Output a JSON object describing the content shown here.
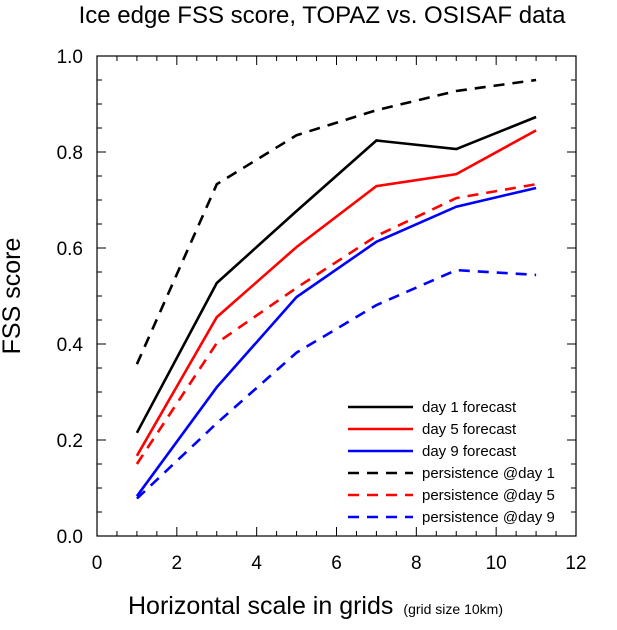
{
  "chart_data": {
    "type": "line",
    "title": "Ice edge FSS score, TOPAZ vs. OSISAF data",
    "xlabel": "Horizontal scale in grids",
    "xlabel_note": "(grid size 10km)",
    "ylabel": "FSS score",
    "xlim": [
      0,
      12
    ],
    "ylim": [
      0,
      1
    ],
    "x_ticks": [
      0,
      2,
      4,
      6,
      8,
      10,
      12
    ],
    "y_ticks": [
      0.0,
      0.2,
      0.4,
      0.6,
      0.8,
      1.0
    ],
    "x_tick_labels": [
      "0",
      "2",
      "4",
      "6",
      "8",
      "10",
      "12"
    ],
    "y_tick_labels": [
      "0.0",
      "0.2",
      "0.4",
      "0.6",
      "0.8",
      "1.0"
    ],
    "grid": false,
    "legend_position": "bottom-right",
    "x": [
      1,
      3,
      5,
      7,
      9,
      11
    ],
    "series": [
      {
        "name": "day 1 forecast",
        "color": "#000000",
        "dash": "solid",
        "values": [
          0.215,
          0.527,
          0.677,
          0.824,
          0.806,
          0.873
        ]
      },
      {
        "name": "day 5 forecast",
        "color": "#ff0000",
        "dash": "solid",
        "values": [
          0.167,
          0.456,
          0.602,
          0.729,
          0.754,
          0.845
        ]
      },
      {
        "name": "day 9 forecast",
        "color": "#0000ff",
        "dash": "solid",
        "values": [
          0.083,
          0.31,
          0.498,
          0.613,
          0.686,
          0.725
        ]
      },
      {
        "name": "persistence @day 1",
        "color": "#000000",
        "dash": "dashed",
        "values": [
          0.358,
          0.733,
          0.835,
          0.887,
          0.927,
          0.95
        ]
      },
      {
        "name": "persistence @day 5",
        "color": "#ff0000",
        "dash": "dashed",
        "values": [
          0.15,
          0.402,
          0.517,
          0.625,
          0.704,
          0.733
        ]
      },
      {
        "name": "persistence @day 9",
        "color": "#0000ff",
        "dash": "dashed",
        "values": [
          0.078,
          0.235,
          0.382,
          0.481,
          0.554,
          0.544
        ]
      }
    ]
  }
}
